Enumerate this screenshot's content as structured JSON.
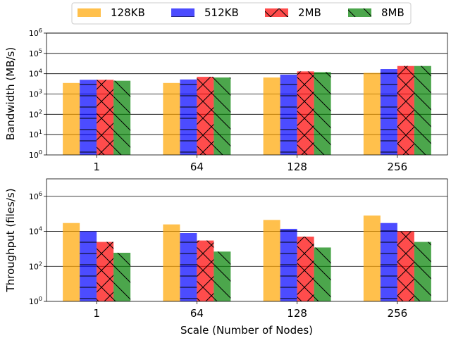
{
  "legend": {
    "placement": "top-center",
    "entries": [
      {
        "name": "128KB",
        "color": "#ffa500",
        "hatch": "none"
      },
      {
        "name": "512KB",
        "color": "#0000ff",
        "hatch": "horizontal"
      },
      {
        "name": "2MB",
        "color": "#ff0000",
        "hatch": "cross"
      },
      {
        "name": "8MB",
        "color": "#008000",
        "hatch": "backslash"
      }
    ]
  },
  "chart_data": [
    {
      "type": "bar",
      "title": "",
      "xlabel": "",
      "ylabel": "Bandwidth (MB/s)",
      "yscale": "log",
      "ylim": [
        1,
        1000000
      ],
      "yticks": [
        "10^0",
        "10^1",
        "10^2",
        "10^3",
        "10^4",
        "10^5",
        "10^6"
      ],
      "grid": "horizontal",
      "categories": [
        "1",
        "64",
        "128",
        "256"
      ],
      "series": [
        {
          "name": "128KB",
          "values": [
            3500,
            3500,
            6500,
            11000
          ]
        },
        {
          "name": "512KB",
          "values": [
            5000,
            5200,
            9000,
            17000
          ]
        },
        {
          "name": "2MB",
          "values": [
            5000,
            7000,
            13000,
            24000
          ]
        },
        {
          "name": "8MB",
          "values": [
            4500,
            6500,
            12000,
            24000
          ]
        }
      ]
    },
    {
      "type": "bar",
      "title": "",
      "xlabel": "Scale (Number of Nodes)",
      "ylabel": "Throughput (files/s)",
      "yscale": "log",
      "ylim": [
        1,
        10000000
      ],
      "yticks": [
        "10^0",
        "10^2",
        "10^4",
        "10^6"
      ],
      "grid": "horizontal",
      "categories": [
        "1",
        "64",
        "128",
        "256"
      ],
      "series": [
        {
          "name": "128KB",
          "values": [
            30000,
            25000,
            45000,
            80000
          ]
        },
        {
          "name": "512KB",
          "values": [
            10000,
            8000,
            14000,
            30000
          ]
        },
        {
          "name": "2MB",
          "values": [
            2500,
            3000,
            5000,
            10000
          ]
        },
        {
          "name": "8MB",
          "values": [
            600,
            700,
            1200,
            2500
          ]
        }
      ]
    }
  ]
}
